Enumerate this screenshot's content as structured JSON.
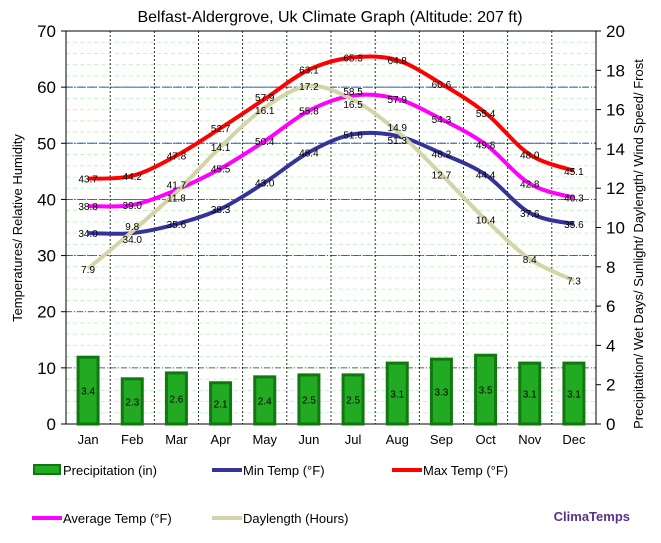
{
  "chart_data": {
    "type": "line",
    "title": "Belfast-Aldergrove, Uk Climate Graph (Altitude: 207 ft)",
    "ylabel": "Temperatures/ Relative Humidity",
    "y2label": "Precipitation/ Wet Days/ Sunlight/ Daylength/ Wind Speed/ Frost",
    "ylim": [
      0,
      70
    ],
    "y2lim": [
      0,
      20
    ],
    "yticks": [
      "0",
      "10",
      "20",
      "30",
      "40",
      "50",
      "60",
      "70"
    ],
    "y2ticks": [
      "0",
      "2",
      "4",
      "6",
      "8",
      "10",
      "12",
      "14",
      "16",
      "18",
      "20"
    ],
    "categories": [
      "Jan",
      "Feb",
      "Mar",
      "Apr",
      "May",
      "Jun",
      "Jul",
      "Aug",
      "Sep",
      "Oct",
      "Nov",
      "Dec"
    ],
    "grid": true,
    "legend_position": "bottom",
    "series": [
      {
        "name": "Precipitation (in)",
        "type": "bar",
        "axis": "right",
        "color": "#1a9a1a",
        "values": [
          3.4,
          2.3,
          2.6,
          2.1,
          2.4,
          2.5,
          2.5,
          3.1,
          3.3,
          3.5,
          3.1,
          3.1
        ]
      },
      {
        "name": "Min Temp (°F)",
        "type": "line",
        "axis": "left",
        "color": "#333399",
        "values": [
          34.0,
          34.0,
          35.6,
          38.3,
          43.0,
          48.4,
          51.6,
          51.3,
          48.2,
          44.4,
          37.6,
          35.6
        ]
      },
      {
        "name": "Max Temp (°F)",
        "type": "line",
        "axis": "left",
        "color": "#ff0000",
        "values": [
          43.7,
          44.2,
          47.8,
          52.7,
          57.9,
          63.1,
          65.3,
          64.8,
          60.6,
          55.4,
          48.0,
          45.1
        ]
      },
      {
        "name": "Average Temp (°F)",
        "type": "line",
        "axis": "left",
        "color": "#ff00ff",
        "values": [
          38.8,
          39.0,
          41.7,
          45.5,
          50.4,
          55.8,
          58.5,
          57.9,
          54.3,
          49.8,
          42.8,
          40.3
        ]
      },
      {
        "name": "Daylength (Hours)",
        "type": "line",
        "axis": "right",
        "color": "#d4d4a8",
        "values": [
          7.9,
          9.8,
          11.8,
          14.1,
          16.1,
          17.2,
          16.5,
          14.9,
          12.7,
          10.4,
          8.4,
          7.3
        ]
      }
    ]
  },
  "brand": "ClimaTemps"
}
